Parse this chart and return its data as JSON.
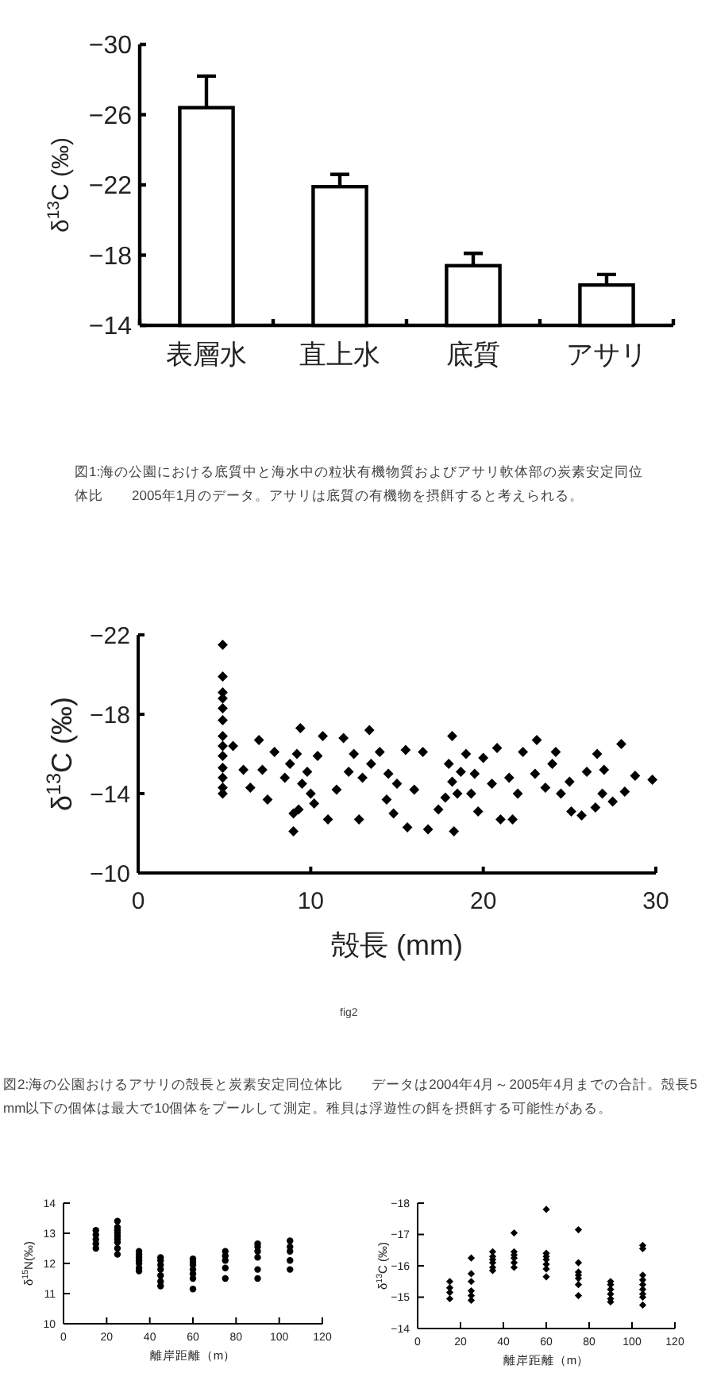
{
  "chart_data": [
    {
      "type": "bar",
      "ylabel": "δ$^{13}$C (‰)",
      "categories": [
        "表層水",
        "直上水",
        "底質",
        "アサリ"
      ],
      "values": [
        -26.4,
        -21.9,
        -17.4,
        -16.3
      ],
      "errors": [
        1.8,
        0.7,
        0.7,
        0.6
      ],
      "color": "#ffffff",
      "ylim": [
        -14,
        -30
      ],
      "yticks": [
        -14,
        -18,
        -22,
        -26,
        -30
      ],
      "annotations": [
        "図1:海の公園における底質中と海水中の粒状有機物質およびアサリ軟体部の炭素安定同位体比　　2005年1月のデータ。アサリは底質の有機物を摂餌すると考えられる。"
      ]
    },
    {
      "type": "scatter",
      "xlabel": "殻長 (mm)",
      "ylabel": "δ$^{13}$C (‰)",
      "marker": "diamond",
      "color": "#000000",
      "xlim": [
        0,
        30
      ],
      "xticks": [
        0,
        10,
        20,
        30
      ],
      "ylim": [
        -10,
        -22
      ],
      "yticks": [
        -10,
        -14,
        -18,
        -22
      ],
      "x": [
        4.9,
        4.9,
        4.9,
        4.9,
        4.9,
        4.9,
        4.9,
        4.9,
        4.9,
        4.9,
        4.9,
        4.9,
        4.9,
        5.5,
        6.1,
        7.0,
        7.5,
        7.9,
        8.5,
        9.0,
        9.4,
        9.3,
        9.8,
        10.4,
        10.7,
        11.0,
        11.9,
        12.2,
        12.8,
        13.4,
        14.0,
        14.4,
        15.0,
        15.6,
        16.5,
        16.8,
        17.4,
        18.2,
        18.3,
        18.7,
        19.3,
        19.7,
        20.5,
        20.8,
        21.0,
        21.7,
        22.3,
        23.1,
        23.6,
        24.2,
        24.5,
        25.1,
        25.7,
        26.0,
        26.6,
        26.9,
        27.5,
        28.0,
        28.2,
        28.8,
        29.8,
        9.5,
        10.0,
        8.8,
        9.2,
        10.2,
        13.0,
        13.5,
        14.5,
        12.5,
        14.8,
        18.0,
        18.5,
        19.0,
        19.5,
        17.8,
        18.2,
        16.0,
        23.0,
        22.0,
        24.0,
        25.0,
        27.0,
        11.5,
        15.5,
        20.0,
        6.5,
        7.2,
        21.5,
        26.5,
        9.0
      ],
      "values": [
        -21.5,
        -19.9,
        -19.1,
        -18.8,
        -18.3,
        -17.7,
        -16.9,
        -16.4,
        -15.9,
        -15.3,
        -14.8,
        -14.3,
        -14.0,
        -16.4,
        -15.2,
        -16.7,
        -13.7,
        -16.1,
        -14.8,
        -12.1,
        -17.3,
        -13.2,
        -15.1,
        -15.9,
        -16.9,
        -12.7,
        -16.8,
        -15.1,
        -12.7,
        -17.2,
        -16.1,
        -13.7,
        -14.5,
        -12.3,
        -16.1,
        -12.2,
        -13.2,
        -16.9,
        -12.1,
        -15.1,
        -14.0,
        -13.1,
        -14.5,
        -16.3,
        -12.7,
        -12.7,
        -16.1,
        -16.7,
        -14.3,
        -16.1,
        -14.0,
        -13.1,
        -12.9,
        -15.1,
        -16.0,
        -14.0,
        -13.6,
        -16.5,
        -14.1,
        -14.9,
        -14.7,
        -14.5,
        -14.0,
        -15.5,
        -16.0,
        -13.5,
        -14.8,
        -15.5,
        -15.0,
        -16.0,
        -13.0,
        -15.5,
        -14.0,
        -16.0,
        -15.0,
        -13.8,
        -14.6,
        -14.2,
        -15.0,
        -14.0,
        -15.5,
        -14.6,
        -15.2,
        -14.2,
        -16.2,
        -15.8,
        -14.3,
        -15.2,
        -14.8,
        -13.3,
        -13.0
      ],
      "annotations": [
        "fig2",
        "図2:海の公園おけるアサリの殻長と炭素安定同位体比　　データは2004年4月～2005年4月までの合計。殻長5mm以下の個体は最大で10個体をプールして測定。稚貝は浮遊性の餌を摂餌する可能性がある。"
      ]
    },
    {
      "type": "scatter",
      "xlabel": "離岸距離（m）",
      "ylabel": "δ$^{15}$N(‰)",
      "marker": "circle",
      "color": "#000000",
      "xlim": [
        0,
        120
      ],
      "xticks": [
        0,
        20,
        40,
        60,
        80,
        100,
        120
      ],
      "ylim": [
        10,
        14
      ],
      "yticks": [
        10,
        11,
        12,
        13,
        14
      ],
      "x": [
        15,
        15,
        15,
        15,
        15,
        25,
        25,
        25,
        25,
        25,
        25,
        25,
        25,
        25,
        35,
        35,
        35,
        35,
        35,
        35,
        35,
        45,
        45,
        45,
        45,
        45,
        45,
        45,
        60,
        60,
        60,
        60,
        60,
        60,
        60,
        75,
        75,
        75,
        75,
        75,
        90,
        90,
        90,
        90,
        90,
        90,
        105,
        105,
        105,
        105,
        105
      ],
      "values": [
        12.5,
        12.65,
        12.8,
        12.95,
        13.1,
        12.3,
        12.5,
        12.7,
        12.8,
        12.9,
        13.0,
        13.1,
        13.2,
        13.4,
        11.75,
        11.85,
        12.0,
        12.1,
        12.2,
        12.3,
        12.4,
        11.25,
        11.4,
        11.6,
        11.8,
        11.95,
        12.1,
        12.2,
        11.15,
        11.5,
        11.65,
        11.8,
        11.95,
        12.05,
        12.15,
        11.5,
        11.85,
        12.1,
        12.25,
        12.4,
        11.5,
        11.8,
        12.2,
        12.4,
        12.55,
        12.65,
        11.8,
        12.1,
        12.4,
        12.55,
        12.75
      ]
    },
    {
      "type": "scatter",
      "xlabel": "離岸距離（m）",
      "ylabel": "δ$^{13}$C (‰)",
      "marker": "diamond",
      "color": "#000000",
      "xlim": [
        0,
        120
      ],
      "xticks": [
        0,
        20,
        40,
        60,
        80,
        100,
        120
      ],
      "ylim": [
        -14,
        -18
      ],
      "yticks": [
        -14,
        -15,
        -16,
        -17,
        -18
      ],
      "x": [
        15,
        15,
        15,
        15,
        25,
        25,
        25,
        25,
        25,
        25,
        35,
        35,
        35,
        35,
        35,
        35,
        45,
        45,
        45,
        45,
        45,
        45,
        60,
        60,
        60,
        60,
        60,
        60,
        60,
        75,
        75,
        75,
        75,
        75,
        75,
        75,
        90,
        90,
        90,
        90,
        90,
        90,
        105,
        105,
        105,
        105,
        105,
        105,
        105,
        105,
        105
      ],
      "values": [
        -14.95,
        -15.15,
        -15.3,
        -15.5,
        -14.9,
        -15.05,
        -15.2,
        -15.5,
        -15.75,
        -16.25,
        -15.85,
        -15.95,
        -16.1,
        -16.2,
        -16.3,
        -16.45,
        -15.95,
        -16.1,
        -16.25,
        -16.35,
        -16.45,
        -17.05,
        -15.65,
        -15.9,
        -16.05,
        -16.2,
        -16.3,
        -16.4,
        -17.8,
        -15.05,
        -15.4,
        -15.6,
        -15.7,
        -15.8,
        -16.1,
        -17.15,
        -14.85,
        -14.95,
        -15.1,
        -15.25,
        -15.4,
        -15.5,
        -14.75,
        -15.0,
        -15.1,
        -15.25,
        -15.4,
        -15.55,
        -15.7,
        -16.55,
        -16.65
      ]
    }
  ]
}
